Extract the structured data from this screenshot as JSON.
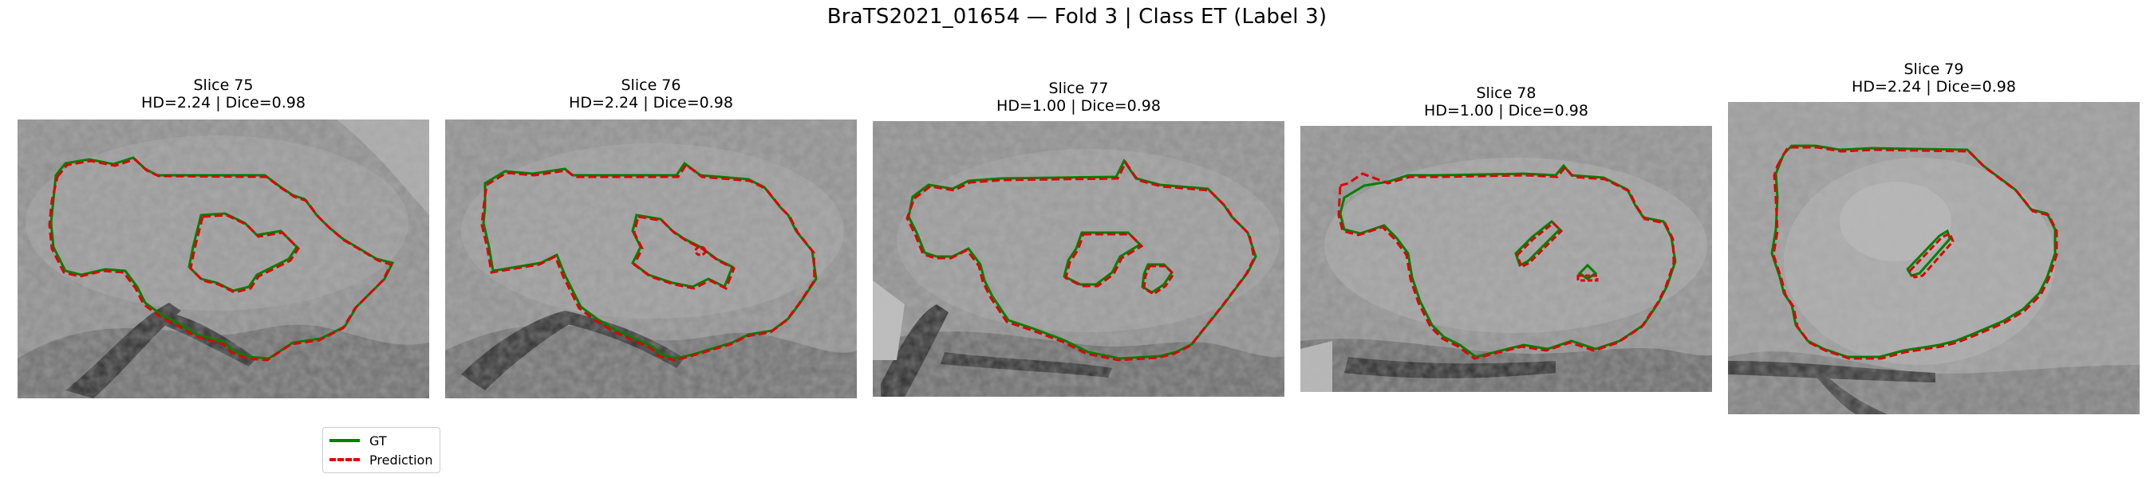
{
  "figure": {
    "title": "BraTS2021_01654 — Fold 3 | Class ET (Label 3)"
  },
  "legend": {
    "gt_label": "GT",
    "pred_label": "Prediction",
    "gt_color": "#008000",
    "pred_color": "#e00000"
  },
  "panels": [
    {
      "slice": "Slice 75",
      "metrics": "HD=2.24 | Dice=0.98"
    },
    {
      "slice": "Slice 76",
      "metrics": "HD=2.24 | Dice=0.98"
    },
    {
      "slice": "Slice 77",
      "metrics": "HD=1.00 | Dice=0.98"
    },
    {
      "slice": "Slice 78",
      "metrics": "HD=1.00 | Dice=0.98"
    },
    {
      "slice": "Slice 79",
      "metrics": "HD=2.24 | Dice=0.98"
    }
  ]
}
